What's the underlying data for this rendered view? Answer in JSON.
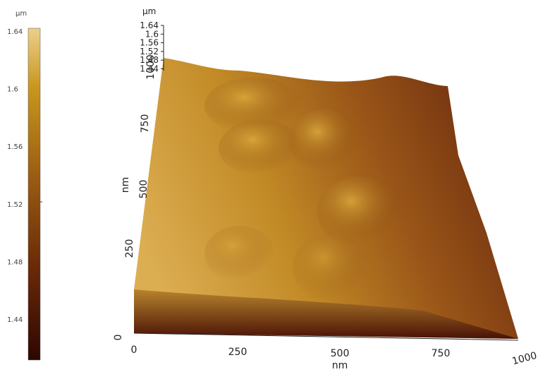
{
  "colorbar": {
    "unit": "µm",
    "ticks": [
      "1.64",
      "1.6",
      "1.56",
      "1.52",
      "1.48",
      "1.44"
    ]
  },
  "z_axis": {
    "unit": "µm",
    "ticks": [
      "1.64",
      "1.6",
      "1.56",
      "1.52",
      "1.48",
      "1.44"
    ]
  },
  "y_axis": {
    "label": "nm",
    "ticks": [
      "0",
      "250",
      "500",
      "750",
      "1000"
    ]
  },
  "x_axis": {
    "label": "nm",
    "ticks": [
      "0",
      "250",
      "500",
      "750",
      "1000"
    ]
  }
}
